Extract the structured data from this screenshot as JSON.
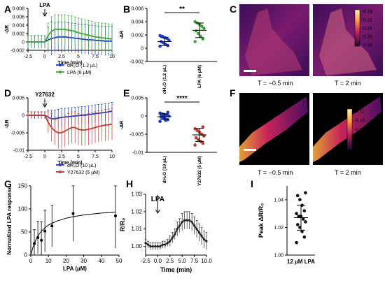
{
  "panel_letters": {
    "A": "A",
    "B": "B",
    "C": "C",
    "D": "D",
    "E": "E",
    "F": "F",
    "G": "G",
    "H": "H",
    "I": "I"
  },
  "colors": {
    "blue": "#1f3fc9",
    "green": "#3aa63a",
    "red": "#c0392b",
    "dark": "#222222"
  },
  "images": {
    "c_cap_left": "T = −0.5 min",
    "c_cap_right": "T = 2 min",
    "f_cap_left": "T = −0.5 min",
    "f_cap_right": "T = 2 min",
    "c_scale": [
      "-0.19",
      "-0.21",
      "-0.24",
      "-0.26",
      "-0.29"
    ],
    "f_scale": [
      "-0.11",
      "-0.19",
      "-0.22",
      "-0.25",
      "-0.29"
    ]
  },
  "chart_data": [
    {
      "id": "A",
      "type": "line",
      "xlabel": "Time (min)",
      "ylabel": "-ΔR",
      "xlim": [
        -2.5,
        10
      ],
      "ylim": [
        -0.002,
        0.008
      ],
      "xticks": [
        -2.5,
        0,
        2.5,
        5,
        7.5,
        10
      ],
      "yticks": [
        -0.002,
        0,
        0.002,
        0.004,
        0.006,
        0.008
      ],
      "annotation": "LPA",
      "series": [
        {
          "name": "dH₂O (1.2 µL)",
          "color": "#1f3fc9",
          "x": [
            -2.5,
            -2,
            -1.5,
            -1,
            -0.5,
            0,
            0.5,
            1,
            1.5,
            2,
            2.5,
            3,
            3.5,
            4,
            4.5,
            5,
            5.5,
            6,
            6.5,
            7,
            7.5,
            8,
            8.5,
            9,
            9.5,
            10
          ],
          "y": [
            0,
            0,
            0,
            0,
            0,
            0,
            0.0005,
            0.0008,
            0.001,
            0.0012,
            0.0012,
            0.0012,
            0.0011,
            0.001,
            0.0009,
            0.0008,
            0.0007,
            0.0006,
            0.0005,
            0.0005,
            0.0004,
            0.0003,
            0.0003,
            0.0002,
            0.0002,
            0.0002
          ],
          "err": [
            0.0015,
            0.0015,
            0.0015,
            0.0015,
            0.0015,
            0.0015,
            0.003,
            0.004,
            0.0035,
            0.0035,
            0.0035,
            0.0035,
            0.0035,
            0.0035,
            0.0035,
            0.0035,
            0.0035,
            0.0035,
            0.0035,
            0.0035,
            0.0035,
            0.0035,
            0.0035,
            0.0035,
            0.0035,
            0.0035
          ]
        },
        {
          "name": "LPA (6 µM)",
          "color": "#3aa63a",
          "x": [
            -2.5,
            -2,
            -1.5,
            -1,
            -0.5,
            0,
            0.5,
            1,
            1.5,
            2,
            2.5,
            3,
            3.5,
            4,
            4.5,
            5,
            5.5,
            6,
            6.5,
            7,
            7.5,
            8,
            8.5,
            9,
            9.5,
            10
          ],
          "y": [
            0,
            0,
            0,
            0,
            0,
            0,
            0.0015,
            0.0025,
            0.003,
            0.003,
            0.003,
            0.003,
            0.0028,
            0.0027,
            0.0025,
            0.0022,
            0.002,
            0.0018,
            0.0016,
            0.0014,
            0.0012,
            0.0011,
            0.001,
            0.0009,
            0.0008,
            0.0007
          ],
          "err": [
            0.0015,
            0.0015,
            0.0015,
            0.0015,
            0.0015,
            0.0015,
            0.003,
            0.0035,
            0.0035,
            0.0035,
            0.0035,
            0.0035,
            0.0035,
            0.0035,
            0.0035,
            0.0035,
            0.0035,
            0.0035,
            0.0035,
            0.0035,
            0.0035,
            0.0035,
            0.0035,
            0.0035,
            0.0035,
            0.0035
          ]
        }
      ]
    },
    {
      "id": "B",
      "type": "scatter",
      "ylabel": "-ΔR",
      "ylim": [
        -0.002,
        0.006
      ],
      "yticks": [
        -0.002,
        0,
        0.002,
        0.004,
        0.006
      ],
      "significance": "**",
      "categories": [
        "dH₂O (1.2 µL)",
        "LPA (6 µM)"
      ],
      "points": [
        [
          0.0003,
          0.0004,
          0.0006,
          0.0008,
          0.001,
          0.0012,
          0.0015,
          0.0016,
          0.0018,
          0.0019
        ],
        [
          0.001,
          0.0014,
          0.0018,
          0.0022,
          0.0026,
          0.003,
          0.0033,
          0.0036,
          0.0038,
          0.004
        ]
      ],
      "mean": [
        0.001,
        0.0027
      ],
      "sd": [
        0.0006,
        0.0011
      ]
    },
    {
      "id": "D",
      "type": "line",
      "xlabel": "Time (min)",
      "ylabel": "-ΔR",
      "xlim": [
        -2.5,
        10
      ],
      "ylim": [
        -0.01,
        0.005
      ],
      "xticks": [
        -2.5,
        0,
        2.5,
        5,
        7.5,
        10
      ],
      "yticks": [
        -0.01,
        -0.005,
        0,
        0.005
      ],
      "annotation": "Y27632",
      "series": [
        {
          "name": "dH₂O (10 µL)",
          "color": "#1f3fc9",
          "x": [
            -2.5,
            -2,
            -1.5,
            -1,
            -0.5,
            0,
            0.5,
            1,
            1.5,
            2,
            2.5,
            3,
            3.5,
            4,
            4.5,
            5,
            5.5,
            6,
            6.5,
            7,
            7.5,
            8,
            8.5,
            9,
            9.5,
            10
          ],
          "y": [
            0,
            0,
            0,
            0,
            0,
            0,
            -0.0005,
            -0.001,
            -0.001,
            -0.0008,
            -0.0006,
            -0.0005,
            -0.0004,
            -0.0003,
            -0.0002,
            -0.0001,
            0,
            0,
            0.0002,
            0.0003,
            0.0005,
            0.0006,
            0.0007,
            0.0008,
            0.001,
            0.0012
          ],
          "err": [
            0.001,
            0.001,
            0.001,
            0.001,
            0.001,
            0.001,
            0.002,
            0.0025,
            0.0025,
            0.0025,
            0.0025,
            0.0025,
            0.0025,
            0.0025,
            0.0025,
            0.0025,
            0.0025,
            0.0025,
            0.0025,
            0.0025,
            0.0025,
            0.0025,
            0.0025,
            0.0025,
            0.0025,
            0.0025
          ]
        },
        {
          "name": "Y27632 (5 µM)",
          "color": "#c0392b",
          "x": [
            -2.5,
            -2,
            -1.5,
            -1,
            -0.5,
            0,
            0.5,
            1,
            1.5,
            2,
            2.5,
            3,
            3.5,
            4,
            4.5,
            5,
            5.5,
            6,
            6.5,
            7,
            7.5,
            8,
            8.5,
            9,
            9.5,
            10
          ],
          "y": [
            0,
            0,
            0,
            0,
            0,
            0,
            -0.002,
            -0.0035,
            -0.0045,
            -0.005,
            -0.005,
            -0.0045,
            -0.004,
            -0.0035,
            -0.0035,
            -0.004,
            -0.0042,
            -0.0042,
            -0.004,
            -0.0038,
            -0.0035,
            -0.0032,
            -0.003,
            -0.0028,
            -0.0027,
            -0.0025
          ],
          "err": [
            0.001,
            0.001,
            0.001,
            0.001,
            0.001,
            0.001,
            0.003,
            0.004,
            0.004,
            0.0045,
            0.0045,
            0.0045,
            0.0045,
            0.0045,
            0.0045,
            0.0045,
            0.0045,
            0.0045,
            0.0045,
            0.0045,
            0.0045,
            0.0045,
            0.0045,
            0.0045,
            0.0045,
            0.0045
          ]
        }
      ]
    },
    {
      "id": "E",
      "type": "scatter",
      "ylabel": "-ΔR",
      "ylim": [
        -0.01,
        0.005
      ],
      "yticks": [
        -0.01,
        -0.005,
        0,
        0.005
      ],
      "significance": "****",
      "categories": [
        "dH₂O (10 µL)",
        "Y27632 (5 µM)"
      ],
      "points": [
        [
          -0.0015,
          -0.001,
          -0.0008,
          -0.0005,
          -0.0003,
          0,
          0.0002,
          0.0004,
          0.0006,
          0.0008,
          0.001,
          -0.0012,
          -0.0002,
          0.0003
        ],
        [
          -0.008,
          -0.0075,
          -0.007,
          -0.0065,
          -0.006,
          -0.0055,
          -0.005,
          -0.0045,
          -0.004,
          -0.0035,
          -0.003
        ]
      ],
      "mean": [
        -0.0002,
        -0.0052
      ],
      "sd": [
        0.0008,
        0.0018
      ]
    },
    {
      "id": "G",
      "type": "scatter",
      "xlabel": "LPA (µM)",
      "ylabel": "Normalized LPA response",
      "xlim": [
        0,
        50
      ],
      "ylim": [
        0,
        150
      ],
      "xticks": [
        0,
        10,
        20,
        30,
        40,
        50
      ],
      "yticks": [
        0,
        50,
        100,
        150
      ],
      "points": {
        "x": [
          2,
          4,
          6,
          8,
          12,
          24,
          48
        ],
        "y": [
          25,
          38,
          32,
          52,
          63,
          90,
          85
        ],
        "err": [
          30,
          35,
          40,
          45,
          45,
          60,
          70
        ]
      },
      "fit": {
        "x": [
          0,
          1,
          2,
          3,
          4,
          5,
          6,
          8,
          10,
          12,
          15,
          20,
          25,
          30,
          35,
          40,
          45,
          48
        ],
        "y": [
          0,
          14,
          25,
          34,
          41,
          47,
          52,
          59,
          65,
          69,
          74,
          80,
          84,
          87,
          89,
          91,
          92,
          93
        ]
      }
    },
    {
      "id": "H",
      "type": "line",
      "xlabel": "Time (min)",
      "ylabel": "R/R₀",
      "xlim": [
        -2.5,
        10
      ],
      "ylim": [
        0.995,
        1.03
      ],
      "xticks": [
        -2.5,
        0,
        2.5,
        5,
        7.5,
        10
      ],
      "yticks": [
        1.0,
        1.01,
        1.02,
        1.03
      ],
      "annotation": "LPA",
      "series": [
        {
          "name": "",
          "color": "#222222",
          "x": [
            -2.5,
            -2,
            -1.5,
            -1,
            -0.5,
            0,
            0.5,
            1,
            1.5,
            2,
            2.5,
            3,
            3.5,
            4,
            4.5,
            5,
            5.5,
            6,
            6.5,
            7,
            7.5,
            8,
            8.5,
            9,
            9.5,
            10
          ],
          "y": [
            1.002,
            1.001,
            1.0,
            1.0,
            1.0,
            1.0,
            1.0,
            1.001,
            1.001,
            1.002,
            1.003,
            1.005,
            1.007,
            1.01,
            1.012,
            1.014,
            1.015,
            1.015,
            1.015,
            1.014,
            1.012,
            1.01,
            1.008,
            1.006,
            1.004,
            1.003
          ],
          "err": [
            0.002,
            0.002,
            0.002,
            0.002,
            0.002,
            0.002,
            0.002,
            0.002,
            0.002,
            0.002,
            0.003,
            0.003,
            0.003,
            0.004,
            0.004,
            0.005,
            0.005,
            0.005,
            0.005,
            0.005,
            0.005,
            0.005,
            0.005,
            0.005,
            0.005,
            0.005
          ]
        }
      ]
    },
    {
      "id": "I",
      "type": "scatter",
      "ylabel": "Peak ΔR/R₀",
      "ylim": [
        1.0,
        1.05
      ],
      "yticks": [
        1.0,
        1.02,
        1.04
      ],
      "categories": [
        "12  µM LPA"
      ],
      "points": [
        [
          1.009,
          1.013,
          1.017,
          1.02,
          1.022,
          1.024,
          1.026,
          1.028,
          1.028,
          1.03,
          1.032,
          1.036,
          1.04,
          1.043,
          1.045
        ]
      ],
      "mean": [
        1.027
      ],
      "sd": [
        0.009
      ]
    }
  ]
}
